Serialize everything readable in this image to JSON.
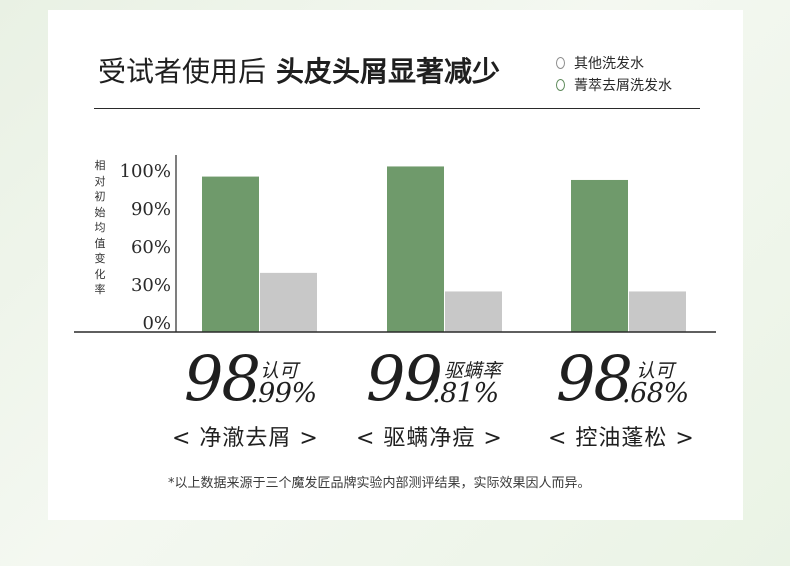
{
  "heading": {
    "normal": "受试者使用后",
    "strong": "头皮头屑显著减少"
  },
  "legend": [
    {
      "name": "其他洗发水",
      "color": "#c8c8c8"
    },
    {
      "name": "菁萃去屑洗发水",
      "color": "#6f9a6b"
    }
  ],
  "chart_data": {
    "type": "bar",
    "ylabel": "相对初始均值变化率",
    "yticks": [
      "100%",
      "90%",
      "60%",
      "30%",
      "0%"
    ],
    "categories": [
      "净澈去屑",
      "驱螨净痘",
      "控油蓬松"
    ],
    "series": [
      {
        "name": "菁萃去屑洗发水",
        "color": "#6f9a6b",
        "values": [
          92,
          98,
          90
        ]
      },
      {
        "name": "其他洗发水",
        "color": "#c8c8c8",
        "values": [
          35,
          24,
          24
        ]
      }
    ],
    "ylim": [
      0,
      103
    ]
  },
  "stats": [
    {
      "big": "98",
      "small": ".99%",
      "tag": "认可",
      "caption": "< 净澈去屑 >"
    },
    {
      "big": "99",
      "small": ".81%",
      "tag": "驱螨率",
      "caption": "< 驱螨净痘 >"
    },
    {
      "big": "98",
      "small": ".68%",
      "tag": "认可",
      "caption": "< 控油蓬松 >"
    }
  ],
  "footnote": "*以上数据来源于三个魔发匠品牌实验内部测评结果，实际效果因人而异。"
}
